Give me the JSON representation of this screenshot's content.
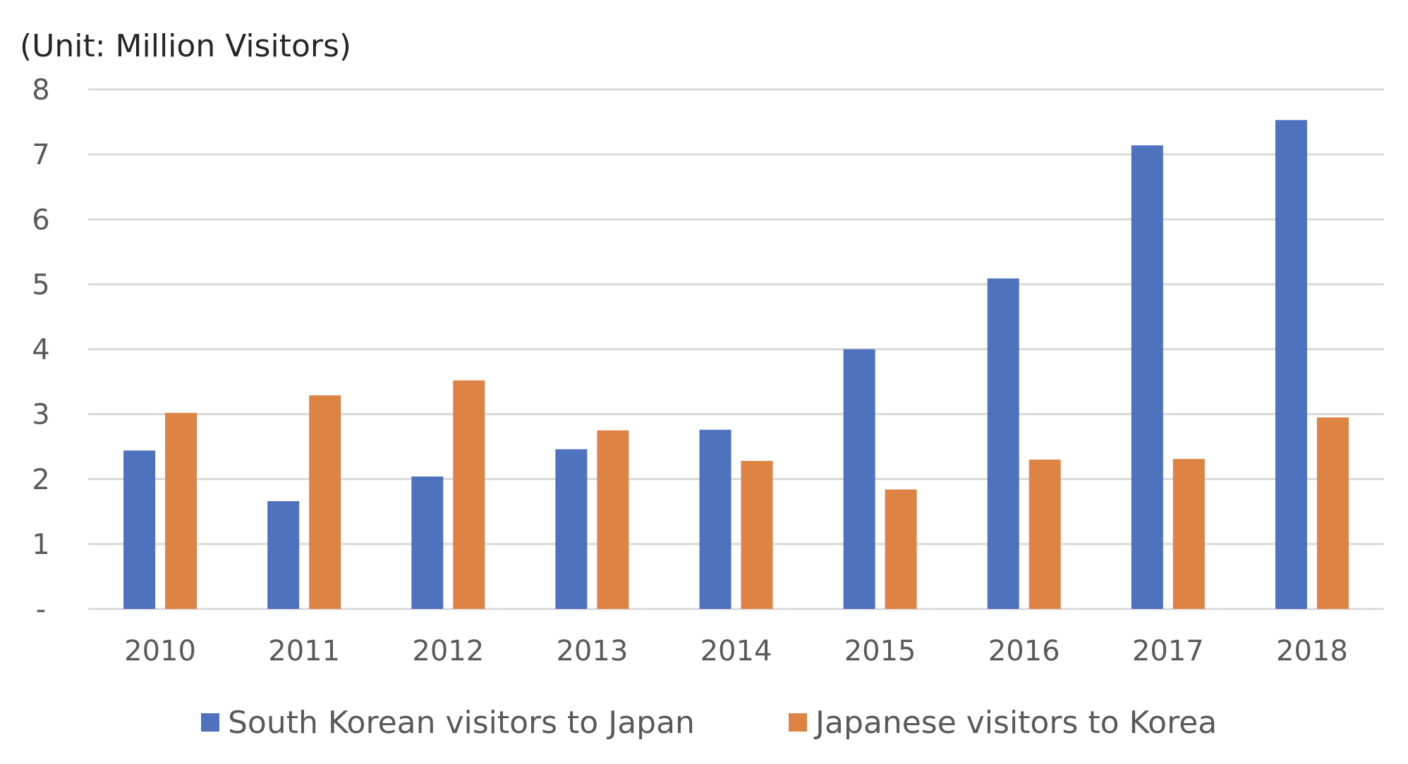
{
  "chart_data": {
    "type": "bar",
    "unit_label": "(Unit: Million Visitors)",
    "categories": [
      "2010",
      "2011",
      "2012",
      "2013",
      "2014",
      "2015",
      "2016",
      "2017",
      "2018"
    ],
    "series": [
      {
        "name": "South Korean visitors to Japan",
        "color": "#4e72be",
        "values": [
          2.44,
          1.66,
          2.04,
          2.46,
          2.76,
          4.0,
          5.09,
          7.14,
          7.53
        ]
      },
      {
        "name": "Japanese visitors to Korea",
        "color": "#dd8344",
        "values": [
          3.02,
          3.29,
          3.52,
          2.75,
          2.28,
          1.84,
          2.3,
          2.31,
          2.95
        ]
      }
    ],
    "ylim": [
      0,
      8
    ],
    "yticks": [
      "-",
      "1",
      "2",
      "3",
      "4",
      "5",
      "6",
      "7",
      "8"
    ],
    "grid": true,
    "legend_position": "bottom"
  }
}
